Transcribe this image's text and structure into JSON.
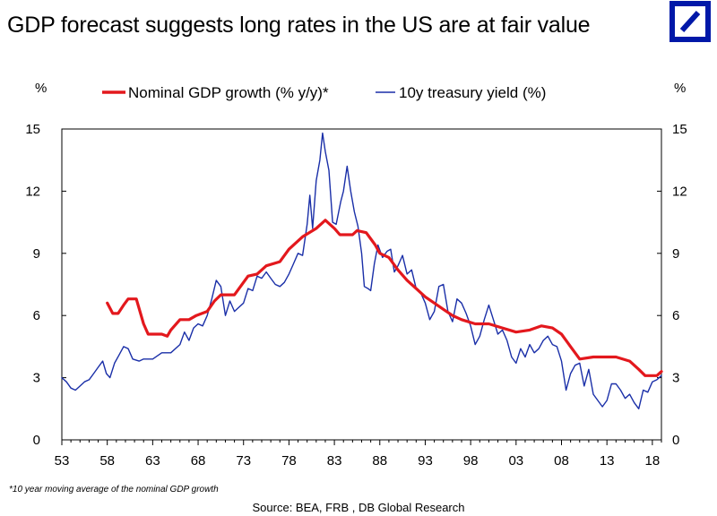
{
  "title": "GDP forecast suggests long rates in the US are at fair value",
  "footnote": "*10 year moving average of the nominal GDP growth",
  "source": "Source: BEA, FRB , DB Global  Research",
  "logo": {
    "name": "deutsche-bank-logo",
    "color": "#0018a8"
  },
  "chart_data": {
    "type": "line",
    "title": "GDP forecast suggests long rates in the US are at fair value",
    "ylabel_left": "%",
    "ylabel_right": "%",
    "ylim": [
      0,
      15
    ],
    "xlim": [
      1953,
      2019
    ],
    "yticks": [
      "0",
      "3",
      "6",
      "9",
      "12",
      "15"
    ],
    "xticks": [
      "53",
      "58",
      "63",
      "68",
      "73",
      "78",
      "83",
      "88",
      "93",
      "98",
      "03",
      "08",
      "13",
      "18"
    ],
    "legend_position": "top-center",
    "series": [
      {
        "name": "Nominal GDP growth (% y/y)*",
        "color": "#e3181d",
        "points": [
          [
            1958.0,
            6.6
          ],
          [
            1958.6,
            6.1
          ],
          [
            1959.2,
            6.1
          ],
          [
            1959.8,
            6.5
          ],
          [
            1960.3,
            6.8
          ],
          [
            1961.2,
            6.8
          ],
          [
            1962.0,
            5.6
          ],
          [
            1962.5,
            5.1
          ],
          [
            1963.2,
            5.1
          ],
          [
            1964.0,
            5.1
          ],
          [
            1964.6,
            5.0
          ],
          [
            1965.0,
            5.3
          ],
          [
            1966.0,
            5.8
          ],
          [
            1967.0,
            5.8
          ],
          [
            1967.8,
            6.0
          ],
          [
            1969.0,
            6.2
          ],
          [
            1969.8,
            6.7
          ],
          [
            1970.5,
            7.0
          ],
          [
            1972.0,
            7.0
          ],
          [
            1972.5,
            7.3
          ],
          [
            1973.5,
            7.9
          ],
          [
            1974.5,
            8.0
          ],
          [
            1975.5,
            8.4
          ],
          [
            1977.0,
            8.6
          ],
          [
            1978.0,
            9.2
          ],
          [
            1979.5,
            9.8
          ],
          [
            1981.0,
            10.2
          ],
          [
            1982.0,
            10.6
          ],
          [
            1983.0,
            10.2
          ],
          [
            1983.6,
            9.9
          ],
          [
            1985.0,
            9.9
          ],
          [
            1985.5,
            10.1
          ],
          [
            1986.5,
            10.0
          ],
          [
            1987.5,
            9.4
          ],
          [
            1988.0,
            9.0
          ],
          [
            1989.0,
            8.8
          ],
          [
            1990.0,
            8.2
          ],
          [
            1991.0,
            7.7
          ],
          [
            1992.0,
            7.3
          ],
          [
            1993.0,
            6.9
          ],
          [
            1994.0,
            6.6
          ],
          [
            1995.0,
            6.3
          ],
          [
            1996.0,
            6.0
          ],
          [
            1997.0,
            5.8
          ],
          [
            1998.5,
            5.6
          ],
          [
            2000.0,
            5.6
          ],
          [
            2001.5,
            5.4
          ],
          [
            2003.0,
            5.2
          ],
          [
            2004.5,
            5.3
          ],
          [
            2005.8,
            5.5
          ],
          [
            2007.0,
            5.4
          ],
          [
            2008.0,
            5.1
          ],
          [
            2009.0,
            4.5
          ],
          [
            2010.0,
            3.9
          ],
          [
            2011.5,
            4.0
          ],
          [
            2014.0,
            4.0
          ],
          [
            2015.5,
            3.8
          ],
          [
            2016.5,
            3.4
          ],
          [
            2017.2,
            3.1
          ],
          [
            2018.5,
            3.1
          ],
          [
            2019.0,
            3.3
          ]
        ]
      },
      {
        "name": "10y treasury yield (%)",
        "color": "#1a2fa8",
        "points": [
          [
            1953.0,
            3.0
          ],
          [
            1953.5,
            2.8
          ],
          [
            1954.0,
            2.5
          ],
          [
            1954.5,
            2.4
          ],
          [
            1955.0,
            2.6
          ],
          [
            1955.5,
            2.8
          ],
          [
            1956.0,
            2.9
          ],
          [
            1956.5,
            3.2
          ],
          [
            1957.0,
            3.5
          ],
          [
            1957.5,
            3.8
          ],
          [
            1957.9,
            3.2
          ],
          [
            1958.3,
            3.0
          ],
          [
            1958.8,
            3.7
          ],
          [
            1959.3,
            4.1
          ],
          [
            1959.8,
            4.5
          ],
          [
            1960.3,
            4.4
          ],
          [
            1960.8,
            3.9
          ],
          [
            1961.5,
            3.8
          ],
          [
            1962.0,
            3.9
          ],
          [
            1962.5,
            3.9
          ],
          [
            1963.0,
            3.9
          ],
          [
            1964.0,
            4.2
          ],
          [
            1965.0,
            4.2
          ],
          [
            1966.0,
            4.6
          ],
          [
            1966.5,
            5.2
          ],
          [
            1967.0,
            4.8
          ],
          [
            1967.5,
            5.4
          ],
          [
            1968.0,
            5.6
          ],
          [
            1968.5,
            5.5
          ],
          [
            1969.0,
            6.0
          ],
          [
            1969.5,
            6.8
          ],
          [
            1970.0,
            7.7
          ],
          [
            1970.5,
            7.4
          ],
          [
            1971.0,
            6.0
          ],
          [
            1971.5,
            6.7
          ],
          [
            1972.0,
            6.2
          ],
          [
            1972.5,
            6.4
          ],
          [
            1973.0,
            6.6
          ],
          [
            1973.5,
            7.3
          ],
          [
            1974.0,
            7.2
          ],
          [
            1974.5,
            7.9
          ],
          [
            1975.0,
            7.8
          ],
          [
            1975.5,
            8.1
          ],
          [
            1976.0,
            7.8
          ],
          [
            1976.5,
            7.5
          ],
          [
            1977.0,
            7.4
          ],
          [
            1977.5,
            7.6
          ],
          [
            1978.0,
            8.0
          ],
          [
            1978.5,
            8.5
          ],
          [
            1979.0,
            9.0
          ],
          [
            1979.5,
            8.9
          ],
          [
            1980.0,
            10.4
          ],
          [
            1980.3,
            11.8
          ],
          [
            1980.6,
            10.2
          ],
          [
            1981.0,
            12.5
          ],
          [
            1981.4,
            13.5
          ],
          [
            1981.7,
            14.8
          ],
          [
            1982.0,
            13.9
          ],
          [
            1982.4,
            13.0
          ],
          [
            1982.8,
            10.5
          ],
          [
            1983.2,
            10.4
          ],
          [
            1983.7,
            11.5
          ],
          [
            1984.0,
            12.0
          ],
          [
            1984.4,
            13.2
          ],
          [
            1984.8,
            12.0
          ],
          [
            1985.2,
            11.0
          ],
          [
            1985.6,
            10.3
          ],
          [
            1986.0,
            9.0
          ],
          [
            1986.3,
            7.4
          ],
          [
            1986.7,
            7.3
          ],
          [
            1987.0,
            7.2
          ],
          [
            1987.4,
            8.5
          ],
          [
            1987.8,
            9.4
          ],
          [
            1988.3,
            8.8
          ],
          [
            1988.8,
            9.1
          ],
          [
            1989.2,
            9.2
          ],
          [
            1989.6,
            8.1
          ],
          [
            1990.0,
            8.4
          ],
          [
            1990.5,
            8.9
          ],
          [
            1991.0,
            8.0
          ],
          [
            1991.5,
            8.2
          ],
          [
            1992.0,
            7.3
          ],
          [
            1992.5,
            7.1
          ],
          [
            1993.0,
            6.6
          ],
          [
            1993.5,
            5.8
          ],
          [
            1994.0,
            6.2
          ],
          [
            1994.5,
            7.4
          ],
          [
            1995.0,
            7.5
          ],
          [
            1995.5,
            6.2
          ],
          [
            1996.0,
            5.7
          ],
          [
            1996.5,
            6.8
          ],
          [
            1997.0,
            6.6
          ],
          [
            1997.5,
            6.1
          ],
          [
            1998.0,
            5.5
          ],
          [
            1998.5,
            4.6
          ],
          [
            1999.0,
            5.0
          ],
          [
            1999.5,
            5.8
          ],
          [
            2000.0,
            6.5
          ],
          [
            2000.5,
            5.8
          ],
          [
            2001.0,
            5.1
          ],
          [
            2001.5,
            5.3
          ],
          [
            2002.0,
            4.8
          ],
          [
            2002.5,
            4.0
          ],
          [
            2003.0,
            3.7
          ],
          [
            2003.5,
            4.4
          ],
          [
            2004.0,
            4.0
          ],
          [
            2004.5,
            4.6
          ],
          [
            2005.0,
            4.2
          ],
          [
            2005.5,
            4.4
          ],
          [
            2006.0,
            4.8
          ],
          [
            2006.5,
            5.0
          ],
          [
            2007.0,
            4.6
          ],
          [
            2007.5,
            4.5
          ],
          [
            2008.0,
            3.8
          ],
          [
            2008.5,
            2.4
          ],
          [
            2009.0,
            3.2
          ],
          [
            2009.5,
            3.6
          ],
          [
            2010.0,
            3.7
          ],
          [
            2010.5,
            2.6
          ],
          [
            2011.0,
            3.4
          ],
          [
            2011.5,
            2.2
          ],
          [
            2012.0,
            1.9
          ],
          [
            2012.5,
            1.6
          ],
          [
            2013.0,
            1.9
          ],
          [
            2013.5,
            2.7
          ],
          [
            2014.0,
            2.7
          ],
          [
            2014.5,
            2.4
          ],
          [
            2015.0,
            2.0
          ],
          [
            2015.5,
            2.2
          ],
          [
            2016.0,
            1.8
          ],
          [
            2016.5,
            1.5
          ],
          [
            2017.0,
            2.4
          ],
          [
            2017.5,
            2.3
          ],
          [
            2018.0,
            2.8
          ],
          [
            2018.5,
            2.9
          ],
          [
            2019.0,
            3.1
          ]
        ]
      }
    ]
  }
}
